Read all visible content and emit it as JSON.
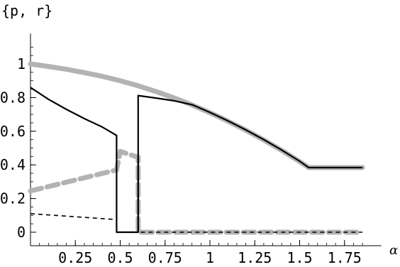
{
  "chart_data": {
    "type": "line",
    "title": "{p, r}",
    "xlabel": "α",
    "ylabel": "",
    "xlim": [
      0,
      1.9
    ],
    "ylim": [
      -0.08,
      1.18
    ],
    "x_ticks": [
      0.25,
      0.5,
      0.75,
      1,
      1.25,
      1.5,
      1.75
    ],
    "x_tick_labels": [
      "0.25",
      "0.5",
      "0.75",
      "1",
      "1.25",
      "1.5",
      "1.75"
    ],
    "y_ticks": [
      0,
      0.2,
      0.4,
      0.6,
      0.8,
      1
    ],
    "y_tick_labels": [
      "0",
      "0.2",
      "0.4",
      "0.6",
      "0.8",
      "1"
    ],
    "grid": false,
    "legend": "none",
    "series": [
      {
        "style": "thick-gray-solid",
        "color": "#b3b3b3",
        "x": [
          0,
          0.1,
          0.2,
          0.3,
          0.4,
          0.5,
          0.6,
          0.7,
          0.8,
          0.9,
          1.0,
          1.1,
          1.2,
          1.3,
          1.4,
          1.5,
          1.55,
          1.7,
          1.85
        ],
        "y": [
          1.0,
          0.985,
          0.968,
          0.948,
          0.926,
          0.9,
          0.87,
          0.836,
          0.798,
          0.756,
          0.71,
          0.66,
          0.606,
          0.548,
          0.486,
          0.42,
          0.384,
          0.384,
          0.384
        ]
      },
      {
        "style": "thick-gray-dashed",
        "color": "#b3b3b3",
        "x": [
          0,
          0.48,
          0.48,
          0.5,
          0.6,
          0.6,
          0.62,
          1.85
        ],
        "y": [
          0.245,
          0.37,
          0.37,
          0.48,
          0.445,
          0.0,
          0.0,
          0.0
        ]
      },
      {
        "style": "black-solid",
        "color": "#000000",
        "x": [
          0,
          0.1,
          0.2,
          0.3,
          0.4,
          0.48,
          0.48,
          0.6,
          0.6,
          0.7,
          0.8,
          0.9,
          1.0,
          1.1,
          1.2,
          1.3,
          1.4,
          1.5,
          1.55,
          1.7,
          1.85
        ],
        "y": [
          0.86,
          0.79,
          0.73,
          0.675,
          0.625,
          0.575,
          0.0,
          0.0,
          0.812,
          0.797,
          0.781,
          0.758,
          0.712,
          0.662,
          0.608,
          0.55,
          0.488,
          0.422,
          0.384,
          0.384,
          0.384
        ]
      },
      {
        "style": "black-dashed",
        "color": "#000000",
        "x": [
          0,
          0.48,
          0.48,
          0.6,
          0.6,
          0.6,
          1.85
        ],
        "y": [
          0.11,
          0.075,
          0.0,
          0.0,
          0.4,
          0.0,
          0.0
        ]
      }
    ]
  }
}
